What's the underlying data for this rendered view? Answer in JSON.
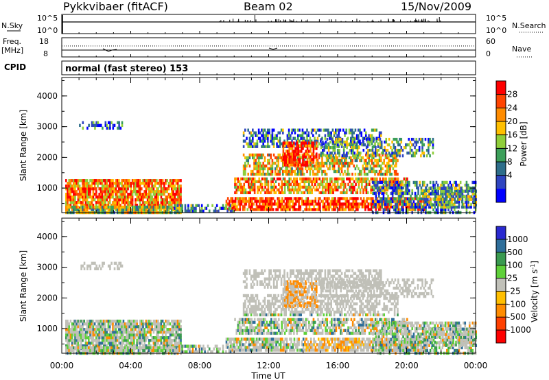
{
  "header": {
    "title": "Pykkvibaer (fitACF)",
    "beam": "Beam 02",
    "date": "15/Nov/2009"
  },
  "sky_panel": {
    "left_label": "N.Sky",
    "right_label": "N.Search",
    "left_ticks": [
      "10^5",
      "10^0"
    ],
    "right_ticks": [
      "10^5",
      "10^0"
    ]
  },
  "freq_panel": {
    "left_label_1": "Freq.",
    "left_label_2": "[MHz]",
    "right_label": "Nave",
    "left_ticks": [
      "18",
      "8"
    ],
    "right_ticks": [
      "60",
      "0"
    ]
  },
  "cpid": {
    "label": "CPID",
    "value": "normal (fast stereo) 153"
  },
  "chart_data": [
    {
      "type": "heatmap",
      "name": "power",
      "ylabel": "Slant Range [km]",
      "xlabel": "Time UT",
      "y_ticks": [
        "4000",
        "3000",
        "2000",
        "1000"
      ],
      "x_ticks": [
        "00:00",
        "04:00",
        "08:00",
        "12:00",
        "16:00",
        "20:00",
        "00:00"
      ],
      "colorbar": {
        "label": "Power [dB]",
        "ticks": [
          "28",
          "24",
          "20",
          "16",
          "12",
          "8",
          "4"
        ],
        "colors": [
          "#ff0000",
          "#ff4400",
          "#ff8c00",
          "#ffbf00",
          "#8fce3a",
          "#3c9f5a",
          "#2e6e8a",
          "#2f45c0",
          "#0000ff"
        ]
      }
    },
    {
      "type": "heatmap",
      "name": "velocity",
      "ylabel": "Slant Range [km]",
      "xlabel": "Time UT",
      "y_ticks": [
        "4000",
        "3000",
        "2000",
        "1000"
      ],
      "x_ticks": [
        "00:00",
        "04:00",
        "08:00",
        "12:00",
        "16:00",
        "20:00",
        "00:00"
      ],
      "colorbar": {
        "label_main": "Velocity [m s",
        "label_sup": "-1",
        "label_end": "]",
        "ticks": [
          "1000",
          "500",
          "100",
          "25",
          "-25",
          "-100",
          "-500",
          "-1000"
        ],
        "colors": [
          "#2a2ad0",
          "#2e6e9a",
          "#3a9a50",
          "#5fd03a",
          "#c0c0b8",
          "#ffbf00",
          "#ff8c00",
          "#ff4000",
          "#ff0000"
        ]
      }
    }
  ]
}
